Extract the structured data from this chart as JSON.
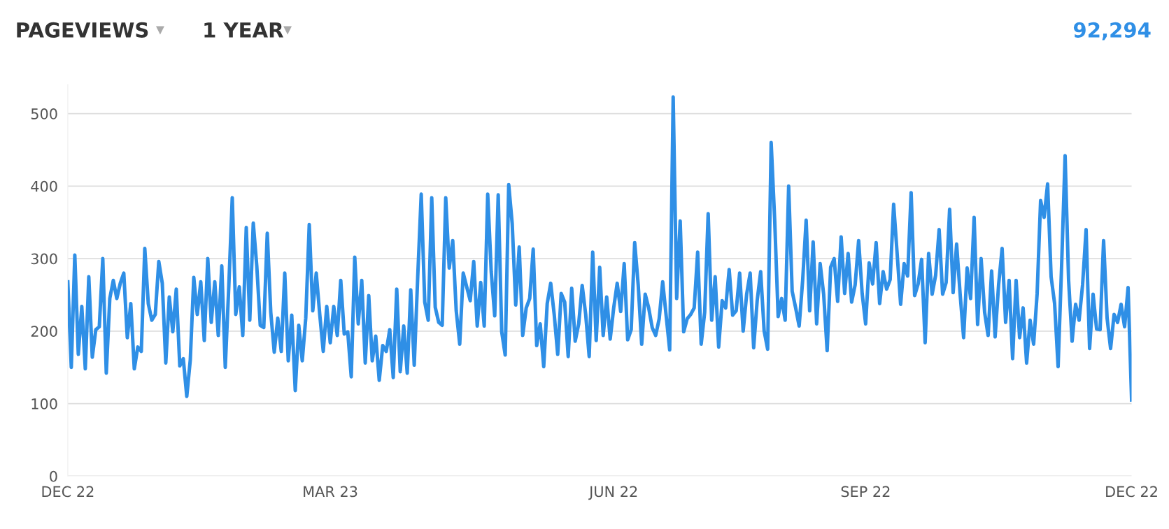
{
  "chart_data": {
    "type": "line",
    "title": "PAGEVIEWS",
    "subtitle": "1 YEAR",
    "annotations": [
      "92,294"
    ],
    "categories": [
      "DEC 22",
      null,
      null,
      null,
      null,
      null,
      null,
      null,
      null,
      null,
      null,
      null,
      null,
      null,
      null,
      null,
      null,
      null,
      null,
      null,
      null,
      null,
      null,
      null,
      null,
      null,
      null,
      null,
      null,
      null,
      null,
      null,
      null,
      null,
      null,
      null,
      null,
      null,
      null,
      null,
      null,
      null,
      null,
      null,
      null,
      null,
      null,
      null,
      null,
      null,
      null,
      null,
      null,
      null,
      null,
      null,
      null,
      null,
      null,
      null,
      null,
      null,
      null,
      null,
      null,
      null,
      null,
      null,
      null,
      null,
      null,
      null,
      null,
      null,
      null,
      "MAR 23",
      null,
      null,
      null,
      null,
      null,
      null,
      null,
      null,
      null,
      null,
      null,
      null,
      null,
      null,
      null,
      null,
      null,
      null,
      null,
      null,
      null,
      null,
      null,
      null,
      null,
      null,
      null,
      null,
      null,
      null,
      null,
      null,
      null,
      null,
      null,
      null,
      null,
      null,
      null,
      null,
      null,
      null,
      null,
      null,
      null,
      null,
      null,
      null,
      null,
      null,
      null,
      null,
      null,
      null,
      null,
      null,
      null,
      null,
      null,
      null,
      null,
      null,
      null,
      null,
      null,
      null,
      null,
      null,
      null,
      null,
      null,
      null,
      null,
      null,
      null,
      null,
      null,
      null,
      null,
      null,
      "JUN 22",
      null,
      null,
      null,
      null,
      null,
      null,
      null,
      null,
      null,
      null,
      null,
      null,
      null,
      null,
      null,
      null,
      null,
      null,
      null,
      null,
      null,
      null,
      null,
      null,
      null,
      null,
      null,
      null,
      null,
      null,
      null,
      null,
      null,
      null,
      null,
      null,
      null,
      null,
      null,
      null,
      null,
      null,
      null,
      null,
      null,
      null,
      null,
      null,
      null,
      null,
      null,
      null,
      null,
      null,
      null,
      null,
      null,
      null,
      null,
      null,
      null,
      null,
      null,
      null,
      null,
      null,
      null,
      null,
      null,
      null,
      null,
      "SEP 22",
      null,
      null,
      null,
      null,
      null,
      null,
      null,
      null,
      null,
      null,
      null,
      null,
      null,
      null,
      null,
      null,
      null,
      null,
      null,
      null,
      null,
      null,
      null,
      null,
      null,
      null,
      null,
      null,
      null,
      null,
      null,
      null,
      null,
      null,
      null,
      null,
      null,
      null,
      null,
      null,
      null,
      null,
      null,
      null,
      null,
      null,
      null,
      null,
      null,
      null,
      null,
      null,
      null,
      null,
      null,
      null,
      null,
      null,
      null,
      null,
      null,
      null,
      null,
      null,
      null,
      null,
      null,
      null,
      null,
      null,
      null,
      null,
      null,
      null,
      null,
      "DEC 22"
    ],
    "series": [
      {
        "color": "#2f8fe6",
        "values": [
          268,
          150,
          305,
          168,
          234,
          148,
          275,
          164,
          202,
          206,
          300,
          142,
          245,
          270,
          245,
          266,
          280,
          191,
          238,
          148,
          178,
          172,
          314,
          238,
          215,
          223,
          296,
          266,
          156,
          247,
          199,
          258,
          152,
          162,
          110,
          160,
          274,
          223,
          268,
          187,
          300,
          212,
          268,
          194,
          290,
          150,
          261,
          384,
          223,
          261,
          194,
          343,
          215,
          349,
          290,
          208,
          205,
          335,
          226,
          171,
          218,
          172,
          280,
          159,
          222,
          118,
          208,
          159,
          218,
          347,
          228,
          280,
          223,
          172,
          234,
          184,
          234,
          194,
          270,
          196,
          199,
          137,
          302,
          210,
          270,
          156,
          249,
          159,
          193,
          132,
          180,
          172,
          202,
          136,
          258,
          144,
          207,
          142,
          257,
          153,
          275,
          389,
          240,
          215,
          384,
          233,
          212,
          208,
          384,
          287,
          325,
          228,
          182,
          280,
          261,
          242,
          296,
          207,
          267,
          207,
          389,
          282,
          221,
          388,
          199,
          167,
          402,
          348,
          236,
          316,
          194,
          232,
          245,
          313,
          180,
          210,
          151,
          238,
          266,
          223,
          168,
          252,
          240,
          165,
          259,
          186,
          210,
          263,
          223,
          165,
          309,
          187,
          288,
          194,
          247,
          189,
          232,
          266,
          227,
          293,
          188,
          202,
          322,
          264,
          182,
          251,
          232,
          205,
          194,
          217,
          268,
          221,
          174,
          523,
          245,
          352,
          199,
          217,
          223,
          232,
          309,
          182,
          226,
          362,
          215,
          275,
          178,
          242,
          232,
          285,
          222,
          228,
          280,
          200,
          251,
          280,
          177,
          242,
          282,
          200,
          175,
          460,
          354,
          220,
          245,
          215,
          400,
          255,
          232,
          207,
          270,
          353,
          228,
          323,
          210,
          293,
          251,
          173,
          288,
          300,
          241,
          330,
          252,
          307,
          240,
          264,
          325,
          252,
          210,
          294,
          265,
          322,
          238,
          282,
          258,
          271,
          375,
          307,
          237,
          293,
          276,
          391,
          249,
          265,
          299,
          184,
          307,
          251,
          277,
          340,
          251,
          267,
          368,
          253,
          320,
          251,
          191,
          287,
          245,
          357,
          209,
          300,
          226,
          194,
          283,
          192,
          264,
          314,
          212,
          270,
          162,
          270,
          191,
          232,
          156,
          215,
          182,
          251,
          380,
          357,
          403,
          275,
          238,
          151,
          290,
          442,
          270,
          186,
          237,
          215,
          264,
          340,
          176,
          251,
          203,
          202,
          325,
          218,
          176,
          223,
          212,
          237,
          206,
          260,
          105
        ]
      }
    ],
    "ylim": [
      0,
      540
    ],
    "yticks": [
      0,
      100,
      200,
      300,
      400,
      500
    ],
    "grid": "y",
    "legend": false,
    "marker": "none",
    "line_style": "solid"
  }
}
